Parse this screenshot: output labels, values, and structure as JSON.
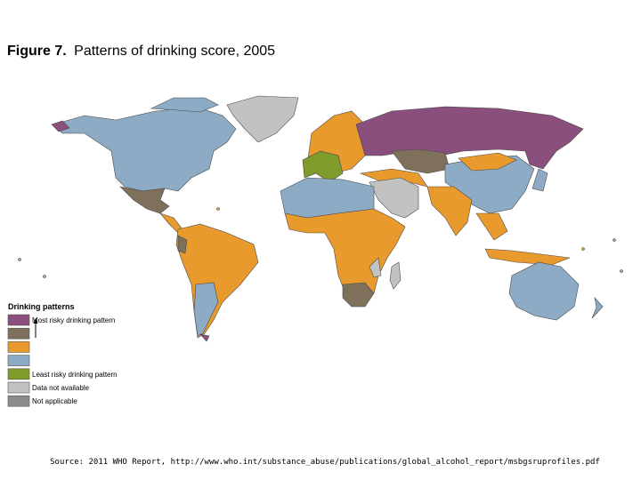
{
  "header": {
    "label": "Figure 7.",
    "title": "Patterns of drinking score, 2005"
  },
  "legend": {
    "title": "Drinking patterns",
    "items": [
      {
        "color": "#8b4f7e",
        "label": "Most risky drinking pattern"
      },
      {
        "color": "#7e705b"
      },
      {
        "color": "#e89a2c"
      },
      {
        "color": "#8eabc5"
      },
      {
        "color": "#7f9b2b",
        "label": "Least risky drinking pattern"
      },
      {
        "color": "#c2c2c2",
        "label": "Data not available"
      },
      {
        "color": "#8c8c8c",
        "label": "Not applicable"
      }
    ]
  },
  "source": "Source: 2011 WHO Report, http://www.who.int/substance_abuse/publications/global_alcohol_report/msbgsruprofiles.pdf"
}
